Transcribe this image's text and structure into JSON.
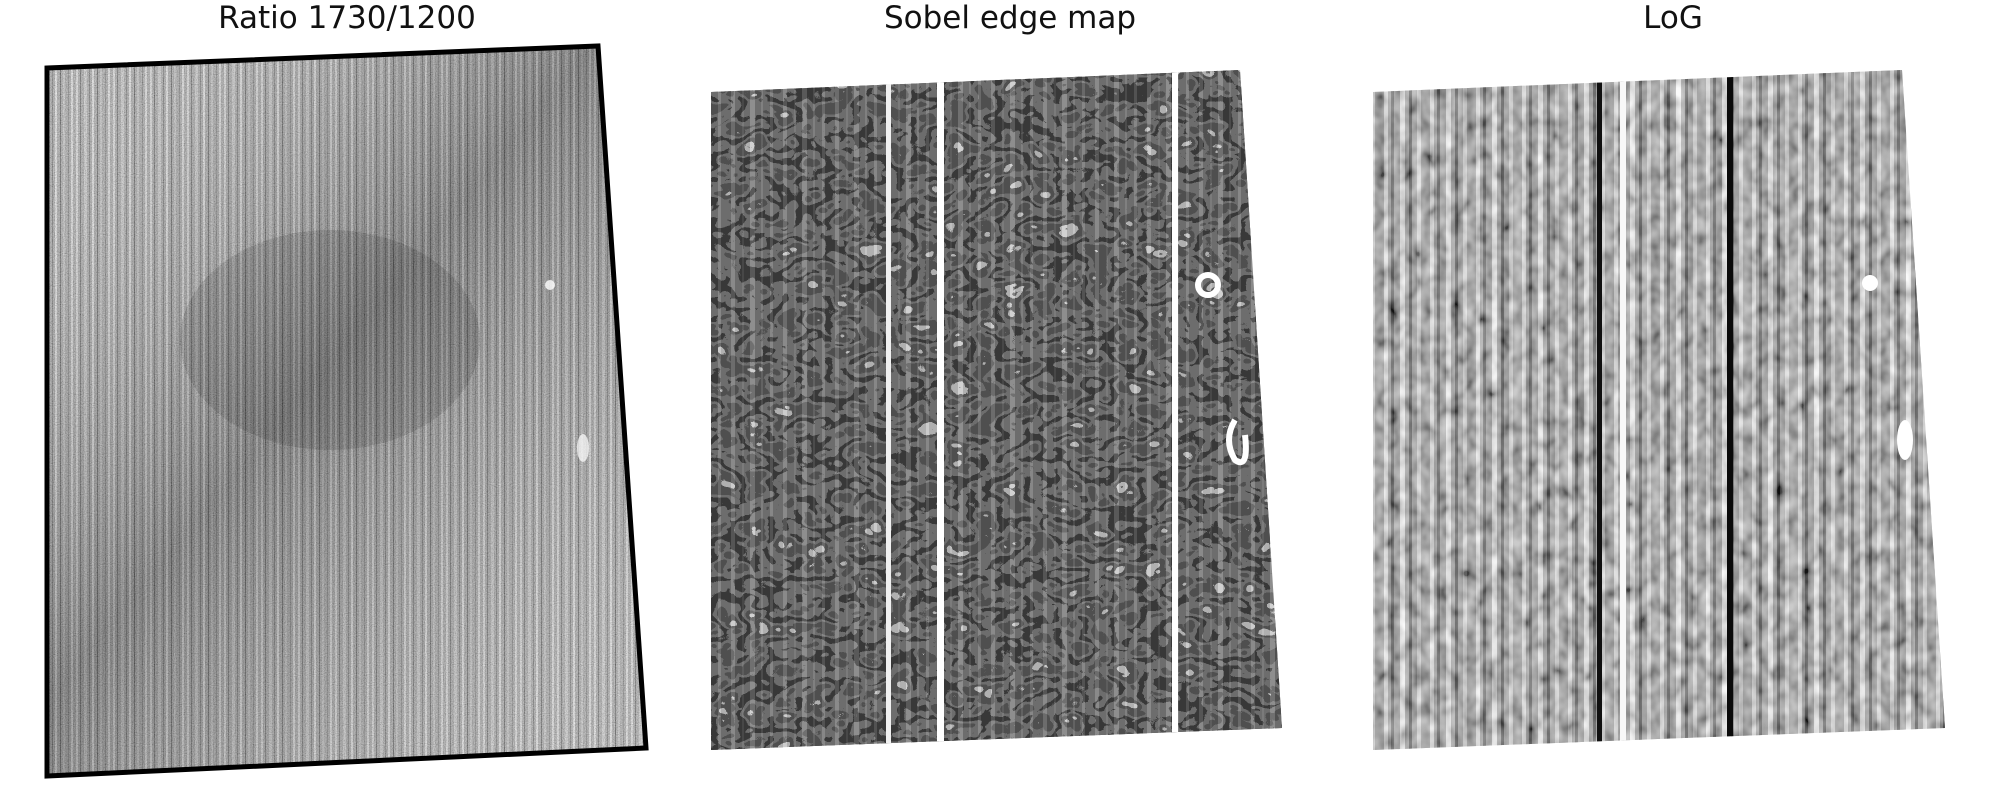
{
  "figure": {
    "panels": [
      {
        "title": "Ratio 1730/1200",
        "image": "grayscale ratio image with vertical striping, tilted quadrilateral footprint",
        "colormap": "grayscale"
      },
      {
        "title": "Sobel edge map",
        "image": "grayscale Sobel edge map with vertical stripes and curved edge contours",
        "colormap": "grayscale"
      },
      {
        "title": "LoG",
        "image": "grayscale Laplacian-of-Gaussian filtered image with vertical stripes",
        "colormap": "grayscale"
      }
    ]
  }
}
